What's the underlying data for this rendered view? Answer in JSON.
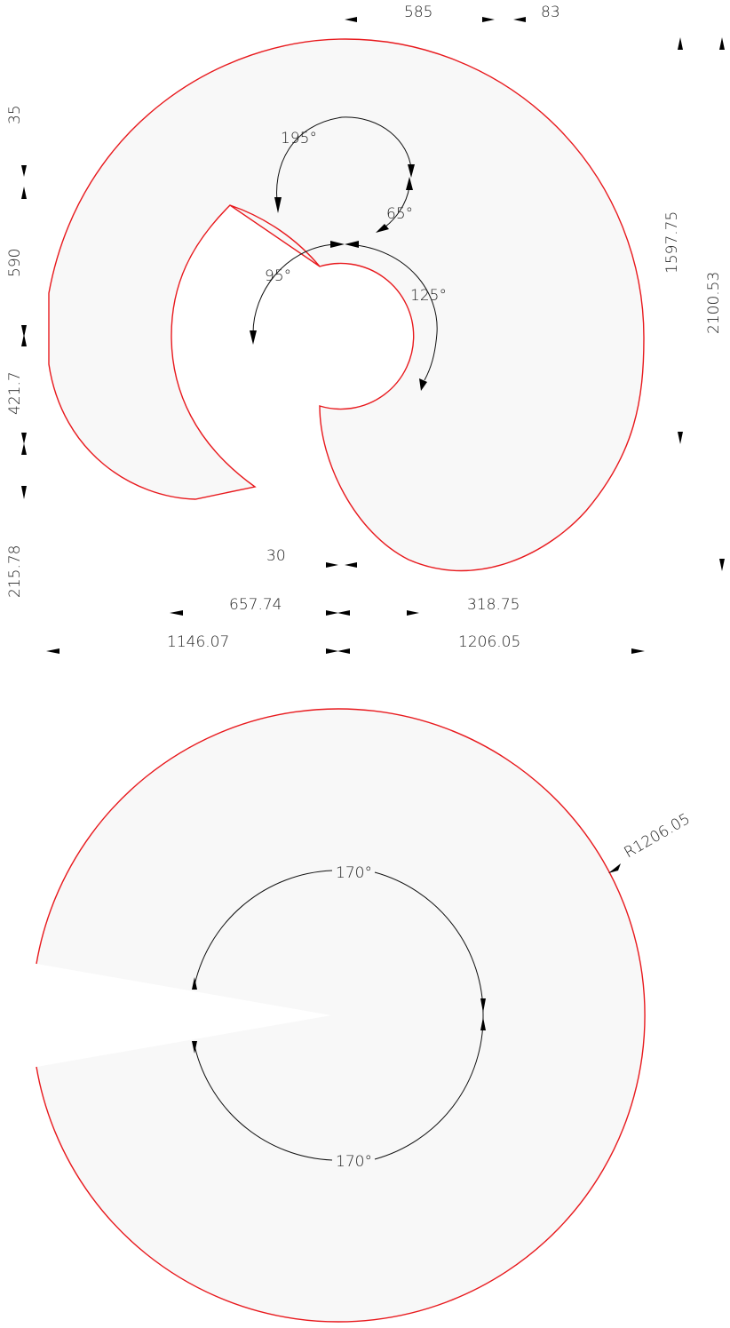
{
  "colors": {
    "outline": "#e8191d",
    "fill": "#f8f8f8",
    "dimension": "#111111"
  },
  "top_part": {
    "dimensions": {
      "top_585": "585",
      "top_83": "83",
      "left_35": "35",
      "left_590": "590",
      "left_421_7": "421.7",
      "left_215_78": "215.78",
      "right_1597_75": "1597.75",
      "right_2100_53": "2100.53",
      "bottom_30": "30",
      "bottom_657_74": "657.74",
      "bottom_318_75": "318.75",
      "bottom_1146_07": "1146.07",
      "bottom_1206_05": "1206.05"
    },
    "angles": {
      "a195": "195°",
      "a65": "65°",
      "a95": "95°",
      "a125": "125°"
    }
  },
  "bottom_part": {
    "radius_label": "R1206.05",
    "angle_top": "170°",
    "angle_bottom": "170°"
  }
}
